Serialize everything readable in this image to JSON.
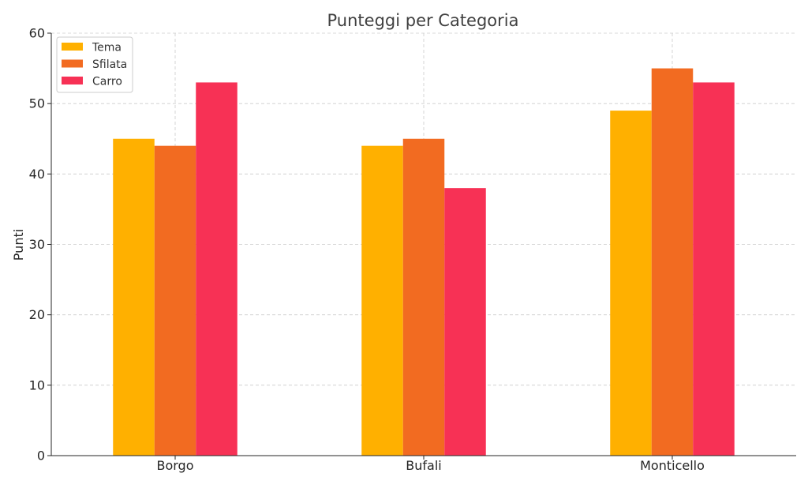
{
  "chart_data": {
    "type": "bar",
    "title": "Punteggi per Categoria",
    "xlabel": "",
    "ylabel": "Punti",
    "categories": [
      "Borgo",
      "Bufali",
      "Monticello"
    ],
    "series": [
      {
        "name": "Tema",
        "values": [
          45,
          44,
          49
        ],
        "color": "#FFB000"
      },
      {
        "name": "Sfilata",
        "values": [
          44,
          45,
          55
        ],
        "color": "#F26B21"
      },
      {
        "name": "Carro",
        "values": [
          53,
          38,
          53
        ],
        "color": "#F73155"
      }
    ],
    "ylim": [
      0,
      60
    ],
    "yticks": [
      0,
      10,
      20,
      30,
      40,
      50,
      60
    ],
    "grid": true,
    "legend_position": "top-left"
  }
}
